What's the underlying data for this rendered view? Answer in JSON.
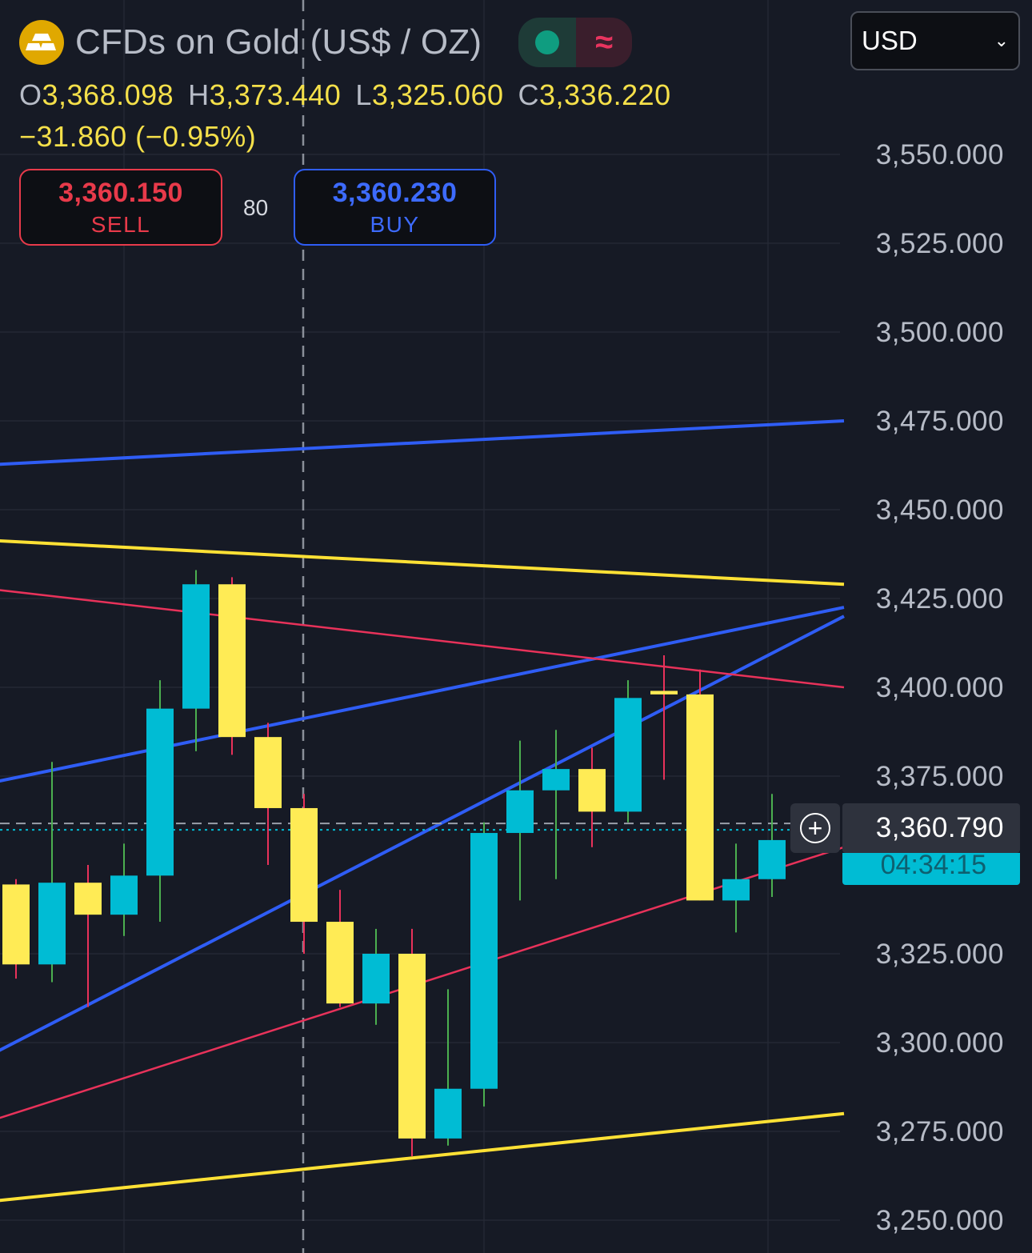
{
  "header": {
    "title": "CFDs on Gold (US$ / OZ)",
    "icon": "gold-bars-icon",
    "status_icons": [
      "market-open-dot-icon",
      "delayed-data-wave-icon"
    ],
    "status_symbol": "≈"
  },
  "ohlc": {
    "o_label": "O",
    "o": "3,368.098",
    "h_label": "H",
    "h": "3,373.440",
    "l_label": "L",
    "l": "3,325.060",
    "c_label": "C",
    "c": "3,336.220",
    "change": "−31.860 (−0.95%)"
  },
  "trade": {
    "sell_price": "3,360.150",
    "sell_label": "SELL",
    "spread": "80",
    "buy_price": "3,360.230",
    "buy_label": "BUY"
  },
  "currency": {
    "selected": "USD",
    "icon": "chevron-down-icon"
  },
  "last_price": {
    "value": "3,360.790",
    "countdown": "04:34:15",
    "add_icon": "plus-circle-icon"
  },
  "colors": {
    "background": "#161a25",
    "up_candle": "#00bcd4",
    "down_candle": "#ffeb55",
    "blue_line": "#2f5df5",
    "yellow_line": "#ffe135",
    "red_line": "#e8325a"
  },
  "chart_data": {
    "type": "candlestick",
    "y_axis": {
      "ticks": [
        "3,550.000",
        "3,525.000",
        "3,500.000",
        "3,475.000",
        "3,450.000",
        "3,425.000",
        "3,400.000",
        "3,375.000",
        "3,325.000",
        "3,300.000",
        "3,275.000",
        "3,250.000"
      ],
      "tick_values": [
        3550,
        3525,
        3500,
        3475,
        3450,
        3425,
        3400,
        3375,
        3325,
        3300,
        3275,
        3250
      ]
    },
    "candles": [
      {
        "o": 3344.5,
        "h": 3346,
        "l": 3318,
        "c": 3322
      },
      {
        "o": 3322,
        "h": 3379,
        "l": 3317,
        "c": 3345
      },
      {
        "o": 3345,
        "h": 3350,
        "l": 3310,
        "c": 3336
      },
      {
        "o": 3336,
        "h": 3356,
        "l": 3330,
        "c": 3347
      },
      {
        "o": 3347,
        "h": 3402,
        "l": 3334,
        "c": 3394
      },
      {
        "o": 3394,
        "h": 3433,
        "l": 3382,
        "c": 3429
      },
      {
        "o": 3429,
        "h": 3431,
        "l": 3381,
        "c": 3386
      },
      {
        "o": 3386,
        "h": 3390,
        "l": 3350,
        "c": 3366
      },
      {
        "o": 3366,
        "h": 3370,
        "l": 3325,
        "c": 3334
      },
      {
        "o": 3334,
        "h": 3343,
        "l": 3310,
        "c": 3311
      },
      {
        "o": 3311,
        "h": 3332,
        "l": 3305,
        "c": 3325
      },
      {
        "o": 3325,
        "h": 3332,
        "l": 3268,
        "c": 3273
      },
      {
        "o": 3273,
        "h": 3315,
        "l": 3271,
        "c": 3287
      },
      {
        "o": 3287,
        "h": 3362,
        "l": 3282,
        "c": 3359
      },
      {
        "o": 3359,
        "h": 3385,
        "l": 3340,
        "c": 3371
      },
      {
        "o": 3371,
        "h": 3388,
        "l": 3346,
        "c": 3377
      },
      {
        "o": 3377,
        "h": 3383,
        "l": 3355,
        "c": 3365
      },
      {
        "o": 3365,
        "h": 3402,
        "l": 3362,
        "c": 3397
      },
      {
        "o": 3399,
        "h": 3409,
        "l": 3374,
        "c": 3398
      },
      {
        "o": 3398,
        "h": 3405,
        "l": 3340,
        "c": 3340
      },
      {
        "o": 3340,
        "h": 3356,
        "l": 3331,
        "c": 3346
      },
      {
        "o": 3346,
        "h": 3370,
        "l": 3341,
        "c": 3357
      }
    ],
    "trendlines": [
      {
        "color": "blue",
        "from": [
          -1,
          3462.5
        ],
        "to": [
          23,
          3475
        ]
      },
      {
        "color": "blue",
        "from": [
          -1,
          3372.5
        ],
        "to": [
          23,
          3422.5
        ]
      },
      {
        "color": "blue",
        "from": [
          -1,
          3295
        ],
        "to": [
          23,
          3420
        ]
      },
      {
        "color": "yellow",
        "from": [
          -1,
          3441.5
        ],
        "to": [
          23,
          3429
        ]
      },
      {
        "color": "yellow",
        "from": [
          -1,
          3255
        ],
        "to": [
          23,
          3280
        ]
      },
      {
        "color": "red",
        "from": [
          -1,
          3428
        ],
        "to": [
          23,
          3400
        ]
      },
      {
        "color": "red",
        "from": [
          -1,
          3277
        ],
        "to": [
          23,
          3355
        ]
      }
    ],
    "last_price": 3360.79,
    "grid": true
  }
}
